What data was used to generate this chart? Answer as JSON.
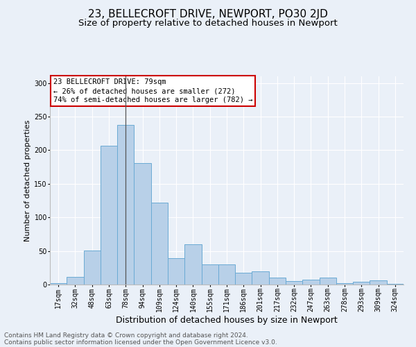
{
  "title": "23, BELLECROFT DRIVE, NEWPORT, PO30 2JD",
  "subtitle": "Size of property relative to detached houses in Newport",
  "xlabel": "Distribution of detached houses by size in Newport",
  "ylabel": "Number of detached properties",
  "categories": [
    "17sqm",
    "32sqm",
    "48sqm",
    "63sqm",
    "78sqm",
    "94sqm",
    "109sqm",
    "124sqm",
    "140sqm",
    "155sqm",
    "171sqm",
    "186sqm",
    "201sqm",
    "217sqm",
    "232sqm",
    "247sqm",
    "263sqm",
    "278sqm",
    "293sqm",
    "309sqm",
    "324sqm"
  ],
  "values": [
    2,
    11,
    51,
    207,
    238,
    181,
    122,
    39,
    60,
    30,
    30,
    18,
    20,
    10,
    5,
    7,
    10,
    2,
    4,
    6,
    1
  ],
  "bar_color": "#b8d0e8",
  "bar_edge_color": "#6aaad4",
  "highlight_index": 4,
  "highlight_line_color": "#555555",
  "annotation_text": "23 BELLECROFT DRIVE: 79sqm\n← 26% of detached houses are smaller (272)\n74% of semi-detached houses are larger (782) →",
  "annotation_box_color": "#ffffff",
  "annotation_box_edge_color": "#cc0000",
  "ylim": [
    0,
    310
  ],
  "yticks": [
    0,
    50,
    100,
    150,
    200,
    250,
    300
  ],
  "footer_line1": "Contains HM Land Registry data © Crown copyright and database right 2024.",
  "footer_line2": "Contains public sector information licensed under the Open Government Licence v3.0.",
  "background_color": "#eaf0f8",
  "title_fontsize": 11,
  "subtitle_fontsize": 9.5,
  "xlabel_fontsize": 9,
  "ylabel_fontsize": 8,
  "tick_fontsize": 7,
  "annotation_fontsize": 7.5,
  "footer_fontsize": 6.5
}
